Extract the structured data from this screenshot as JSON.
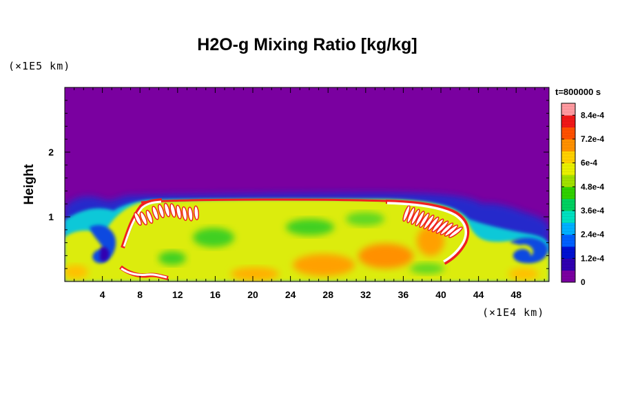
{
  "chart_data": {
    "type": "heatmap",
    "title": "H2O-g Mixing Ratio [kg/kg]",
    "ylabel": "Height",
    "x_unit": "(×1E4 km)",
    "y_unit": "(×1E5 km)",
    "time_label": "t=800000 s",
    "xlim": [
      0,
      51.5
    ],
    "ylim": [
      0,
      3
    ],
    "x_ticks": [
      4,
      8,
      12,
      16,
      20,
      24,
      28,
      32,
      36,
      40,
      44,
      48
    ],
    "x_tick_labels": [
      "4",
      "8",
      "12",
      "16",
      "20",
      "24",
      "28",
      "32",
      "36",
      "40",
      "44",
      "48"
    ],
    "y_ticks": [
      1,
      2
    ],
    "y_tick_labels": [
      "1",
      "2"
    ],
    "colorbar": {
      "range": [
        0,
        0.0009
      ],
      "tick_values": [
        0,
        0.00012,
        0.00024,
        0.00036,
        0.00048,
        0.0006,
        0.00072,
        0.00084
      ],
      "tick_labels": [
        "0",
        "1.2e-4",
        "2.4e-4",
        "3.6e-4",
        "4.8e-4",
        "6e-4",
        "7.2e-4",
        "8.4e-4"
      ],
      "colors": [
        "#7a00a0",
        "#3000b0",
        "#0010d0",
        "#0060ff",
        "#00b0ff",
        "#00e0c0",
        "#00d060",
        "#30d000",
        "#a0e000",
        "#e8f000",
        "#ffd000",
        "#ff9000",
        "#ff5000",
        "#f01818",
        "#ff9aa0"
      ]
    },
    "grid": false,
    "field_description_values": {
      "background_value": 0,
      "layer_top_height": 1.3,
      "layer_mean_value": 0.00062,
      "peak_value": 0.0009
    }
  }
}
